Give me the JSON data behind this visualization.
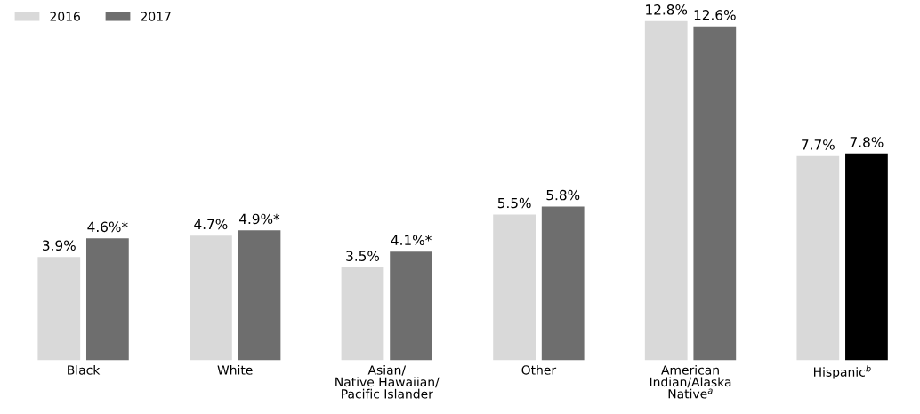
{
  "chart_data": {
    "type": "bar",
    "categories": [
      "Black",
      "White",
      "Asian/\nNative Hawaiian/\nPacific Islander",
      "Other",
      "American\nIndian/Alaska\nNative$^{a}$",
      "Hispanic$^{b}$"
    ],
    "series": [
      {
        "name": "2016",
        "color": "#d9d9d9",
        "values": [
          3.9,
          4.7,
          3.5,
          5.5,
          12.8,
          7.7
        ],
        "value_labels": [
          "3.9%",
          "4.7%",
          "3.5%",
          "5.5%",
          "12.8%",
          "7.7%"
        ]
      },
      {
        "name": "2017",
        "color": "#6e6e6e",
        "colors": [
          "#6e6e6e",
          "#6e6e6e",
          "#6e6e6e",
          "#6e6e6e",
          "#6e6e6e",
          "#000000"
        ],
        "values": [
          4.6,
          4.9,
          4.1,
          5.8,
          12.6,
          7.8
        ],
        "value_labels": [
          "4.6%*",
          "4.9%*",
          "4.1%*",
          "5.8%",
          "12.6%",
          "7.8%"
        ]
      }
    ],
    "tick_labels": "x",
    "grid": false,
    "legend": "top left"
  }
}
